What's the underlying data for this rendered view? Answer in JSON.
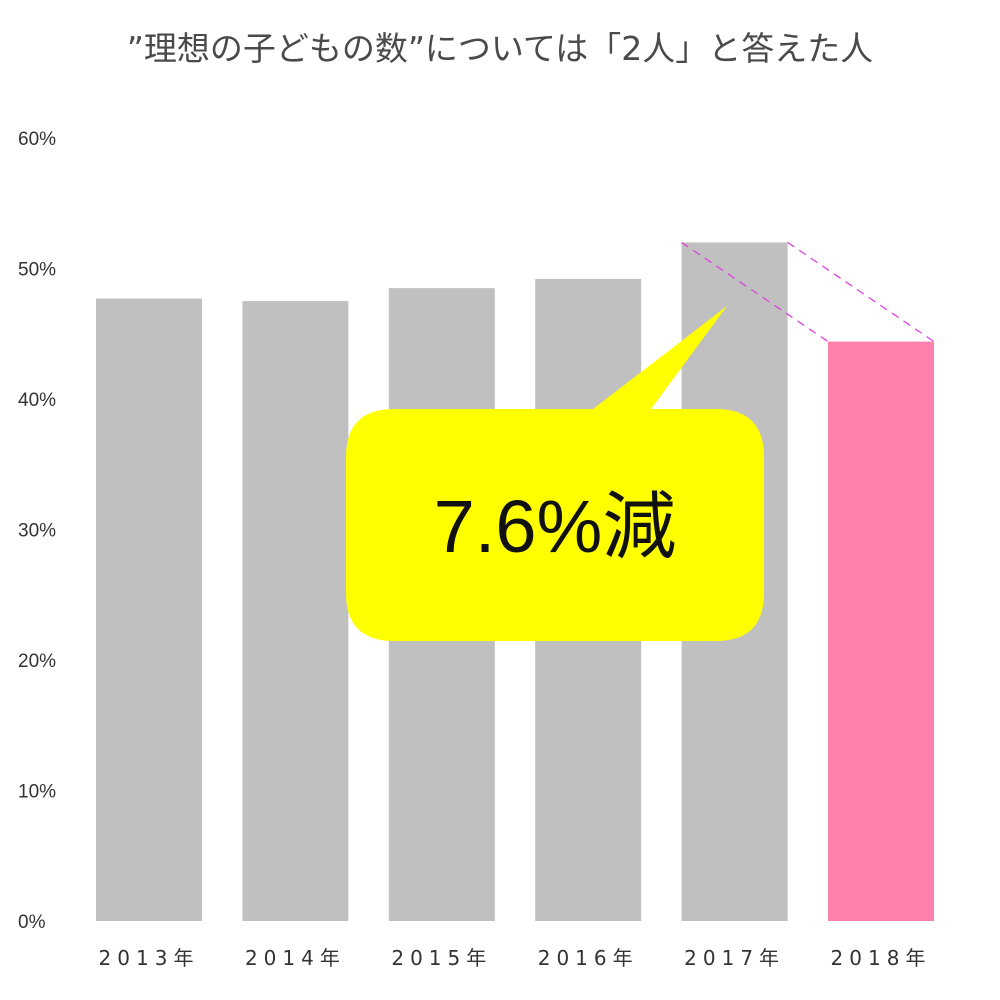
{
  "chart_data": {
    "type": "bar",
    "title": "”理想の子どもの数”については「2人」と答えた人",
    "categories": [
      "2013年",
      "2014年",
      "2015年",
      "2016年",
      "2017年",
      "2018年"
    ],
    "values": [
      47.7,
      47.5,
      48.5,
      49.2,
      52.0,
      44.4
    ],
    "highlight_index": 5,
    "ylim": [
      0,
      60
    ],
    "yticks": [
      0,
      10,
      20,
      30,
      40,
      50,
      60
    ],
    "ytick_labels": [
      "0%",
      "10%",
      "20%",
      "30%",
      "40%",
      "50%",
      "60%"
    ],
    "xlabel": "",
    "ylabel": "",
    "grid": false,
    "annotation": {
      "text": "7.6%減",
      "from_index": 4,
      "to_index": 5
    },
    "colors": {
      "bar": "#c0c0c0",
      "highlight": "#ff80ac",
      "callout_fill": "#ffff00",
      "connector": "#e040e0"
    }
  }
}
